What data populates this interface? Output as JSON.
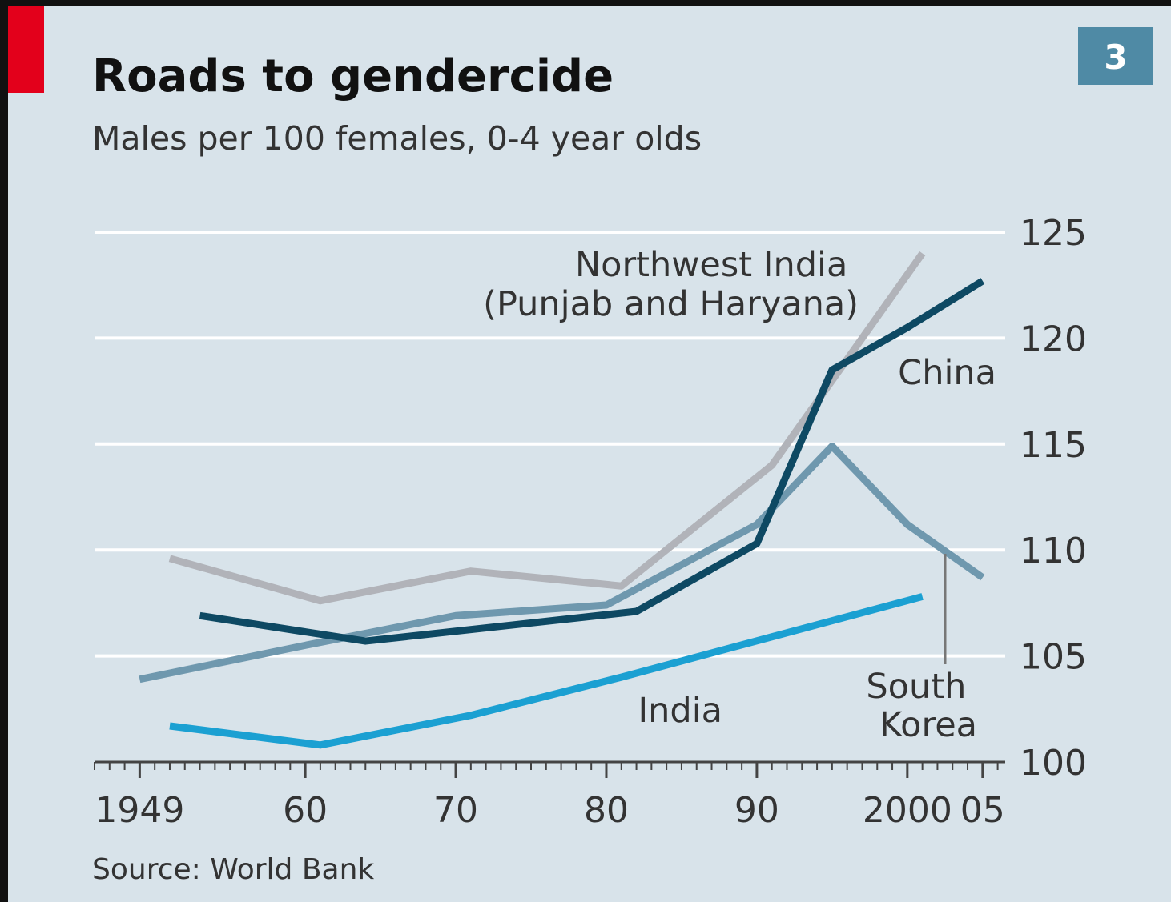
{
  "chart_data": {
    "type": "line",
    "badge": "3",
    "title": "Roads to gendercide",
    "subtitle": "Males per 100 females, 0-4 year olds",
    "source": "Source: World Bank",
    "xlim": [
      1946,
      2006.5
    ],
    "xticks": [
      1949,
      {
        "value": 1960,
        "label": "60"
      },
      {
        "value": 1970,
        "label": "70"
      },
      {
        "value": 1980,
        "label": "80"
      },
      {
        "value": 1990,
        "label": "90"
      },
      2000,
      {
        "value": 2005,
        "label": "05"
      }
    ],
    "ylim": [
      100,
      125
    ],
    "yticks": [
      100,
      105,
      110,
      115,
      120,
      125
    ],
    "grid": true,
    "series": [
      {
        "name": "Northwest India (Punjab and Haryana)",
        "color": "#b1b3b9",
        "x": [
          1951,
          1961,
          1971,
          1981,
          1991,
          2001
        ],
        "values": [
          109.6,
          107.6,
          109.0,
          108.3,
          114.0,
          124.0
        ]
      },
      {
        "name": "South Korea",
        "color": "#6f98ae",
        "x": [
          1949,
          1960,
          1970,
          1980,
          1990,
          1995,
          2000,
          2005
        ],
        "values": [
          103.9,
          105.5,
          106.9,
          107.4,
          111.2,
          114.9,
          111.2,
          108.7
        ]
      },
      {
        "name": "China",
        "color": "#0e4963",
        "x": [
          1953,
          1964,
          1982,
          1990,
          1995,
          2000,
          2005
        ],
        "values": [
          106.9,
          105.7,
          107.1,
          110.3,
          118.5,
          120.5,
          122.7
        ]
      },
      {
        "name": "India",
        "color": "#1ba0d2",
        "x": [
          1951,
          1961,
          1971,
          1981,
          1991,
          2001
        ],
        "values": [
          101.7,
          100.8,
          102.2,
          104.0,
          105.9,
          107.8
        ]
      }
    ]
  }
}
